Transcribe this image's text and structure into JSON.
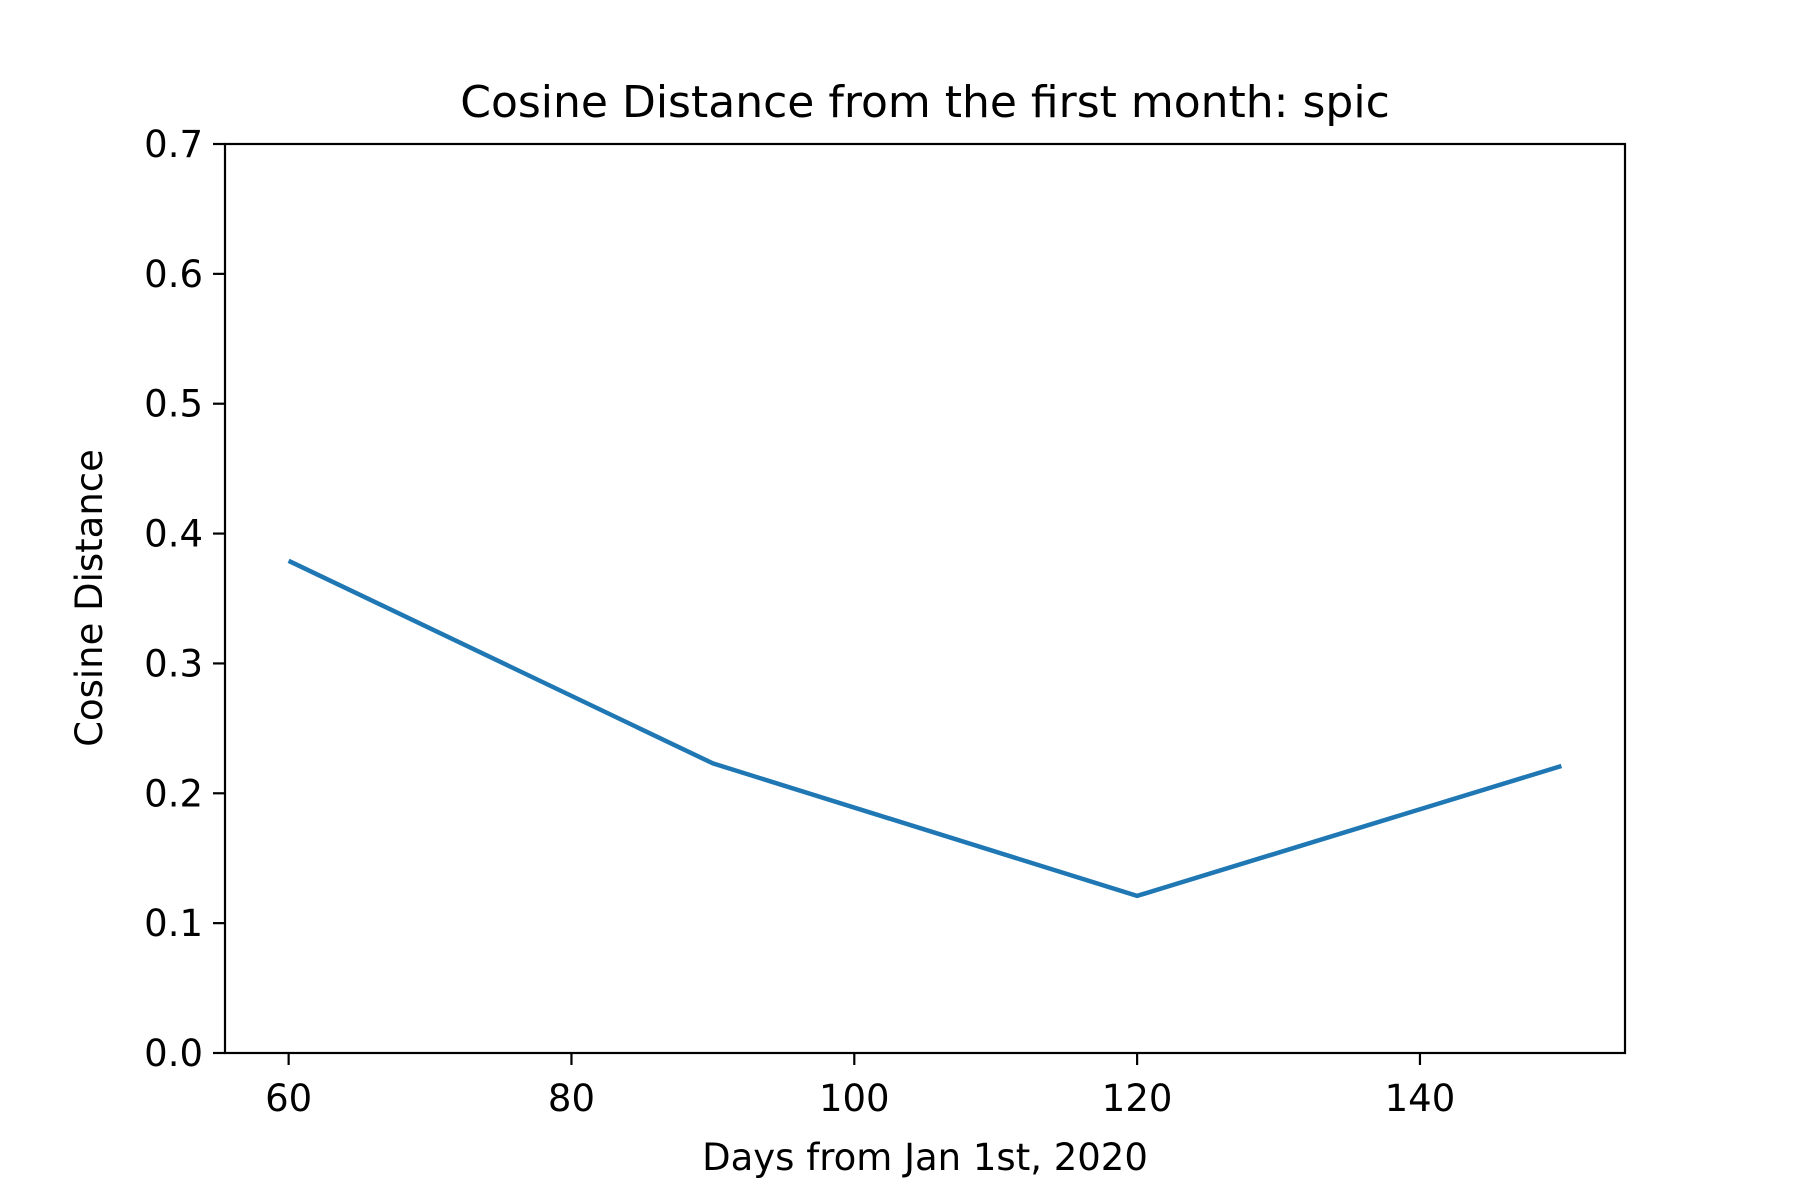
{
  "chart_data": {
    "type": "line",
    "title": "Cosine Distance from the first month: spic",
    "xlabel": "Days from Jan 1st, 2020",
    "ylabel": "Cosine Distance",
    "xlim": [
      55.5,
      154.5
    ],
    "ylim": [
      0.0,
      0.7
    ],
    "x_ticks": [
      60,
      80,
      100,
      120,
      140
    ],
    "x_tick_labels": [
      "60",
      "80",
      "100",
      "120",
      "140"
    ],
    "y_ticks": [
      0.0,
      0.1,
      0.2,
      0.3,
      0.4,
      0.5,
      0.6,
      0.7
    ],
    "y_tick_labels": [
      "0.0",
      "0.1",
      "0.2",
      "0.3",
      "0.4",
      "0.5",
      "0.6",
      "0.7"
    ],
    "grid": false,
    "series": [
      {
        "x": [
          60,
          90,
          120,
          150
        ],
        "y": [
          0.379,
          0.223,
          0.121,
          0.221
        ],
        "color": "#1f77b4"
      }
    ]
  }
}
